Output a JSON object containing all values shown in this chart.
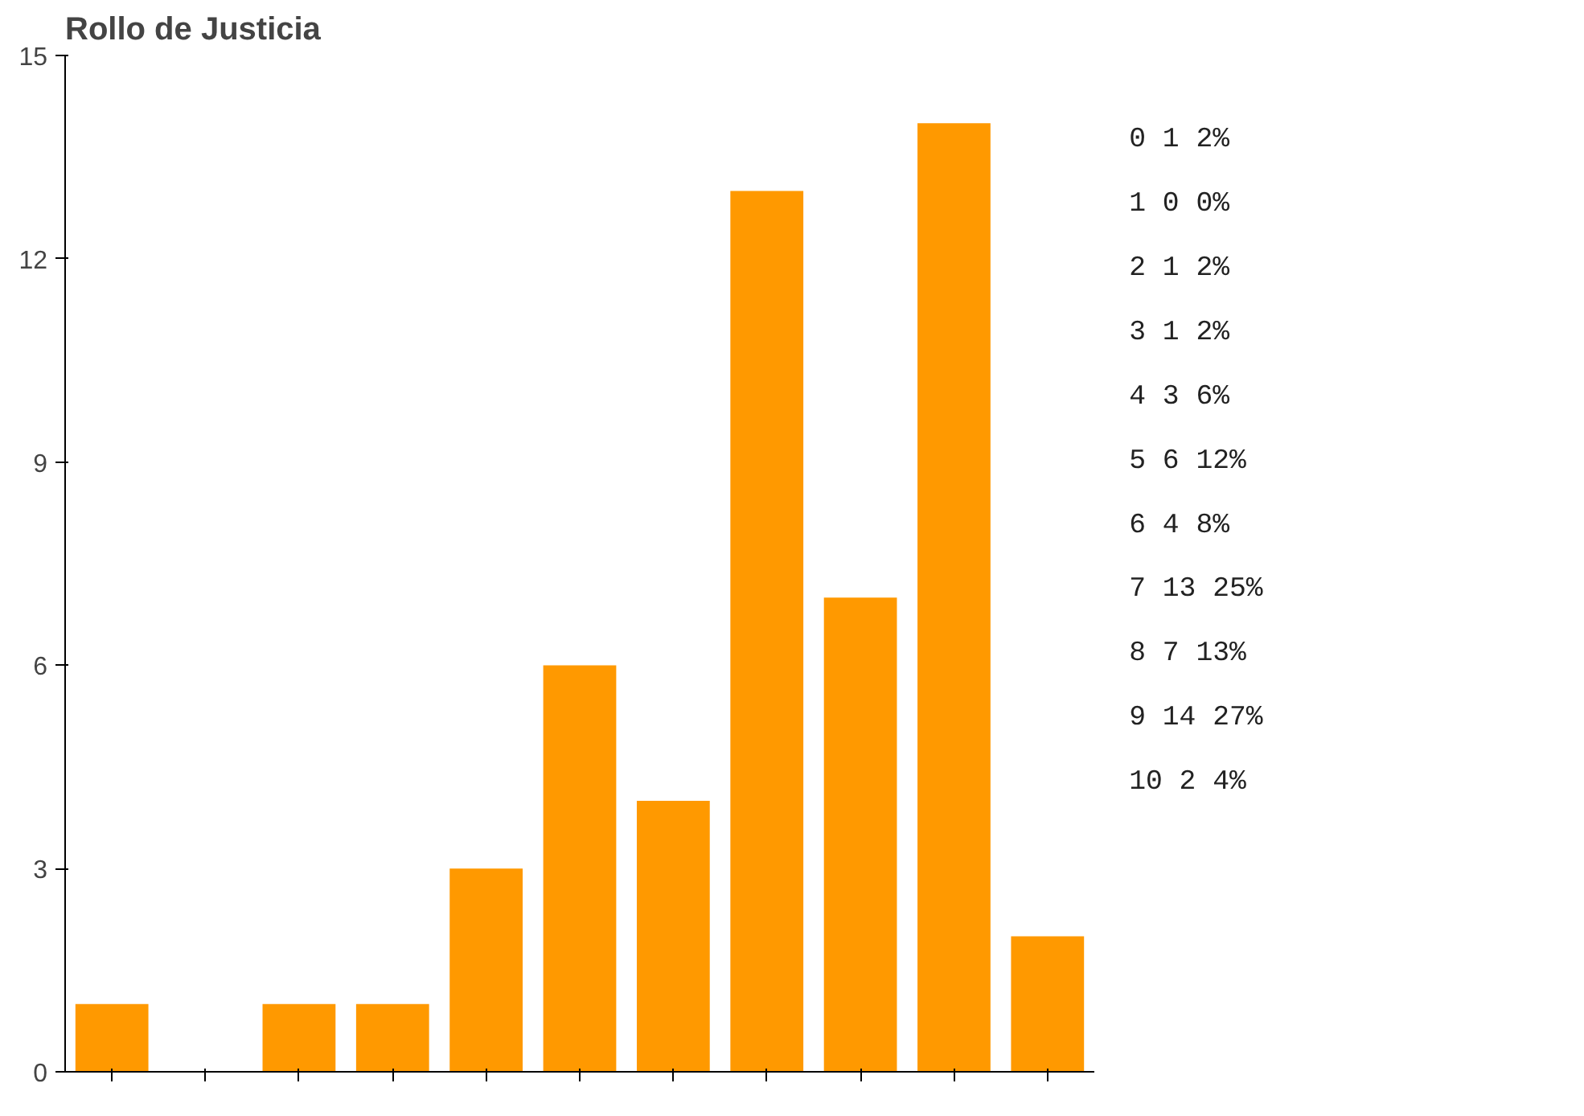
{
  "chart_data": [
    {
      "type": "bar",
      "title": "Rollo de Justicia",
      "categories": [
        null,
        null,
        null,
        null,
        null,
        null,
        null,
        null,
        null,
        null,
        null
      ],
      "values": [
        1,
        0,
        1,
        1,
        3,
        6,
        4,
        13,
        7,
        14,
        2
      ],
      "color": "#ff9900",
      "ylim": [
        0,
        15
      ],
      "yticks": [
        0,
        3,
        6,
        9,
        12,
        15
      ],
      "grid": false,
      "tick_labels": "y"
    },
    {
      "type": "other",
      "annotations": [
        "0 1 2%",
        "1 0 0%",
        "2 1 2%",
        "3 1 2%",
        "4 3 6%",
        "5 6 12%",
        "6 4 8%",
        "7 13 25%",
        "8 7 13%",
        "9 14 27%",
        "10 2 4%"
      ]
    }
  ]
}
